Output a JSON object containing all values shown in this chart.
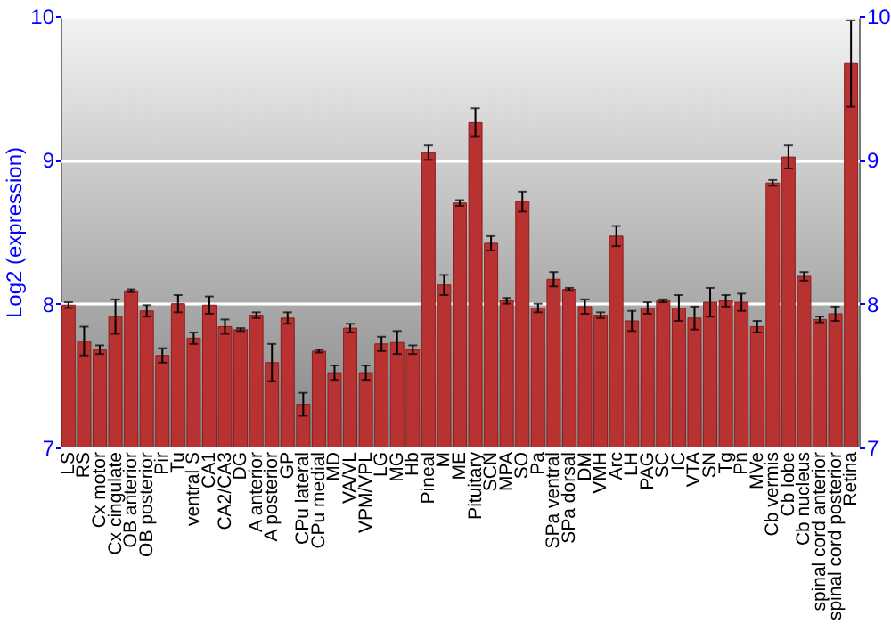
{
  "chart_data": {
    "type": "bar",
    "ylabel": "Log2 (expression)",
    "categories": [
      "LS",
      "RS",
      "Cx motor",
      "Cx cingulate",
      "OB anterior",
      "OB posterior",
      "Pir",
      "Tu",
      "ventral S",
      "CA1",
      "CA2/CA3",
      "DG",
      "A anterior",
      "A posterior",
      "GP",
      "CPu lateral",
      "CPu medial",
      "MD",
      "VA/VL",
      "VPM/VPL",
      "LG",
      "MG",
      "Hb",
      "Pineal",
      "M",
      "ME",
      "Pituitary",
      "SCN",
      "MPA",
      "SO",
      "Pa",
      "SPa ventral",
      "SPa dorsal",
      "DM",
      "VMH",
      "Arc",
      "LH",
      "PAG",
      "SC",
      "IC",
      "VTA",
      "SN",
      "Tg",
      "Pn",
      "MVe",
      "Cb vermis",
      "Cb lobe",
      "Cb nucleus",
      "spinal cord anterior",
      "spinal cord posterior",
      "Retina"
    ],
    "values": [
      7.99,
      7.74,
      7.68,
      7.91,
      8.09,
      7.95,
      7.64,
      8.0,
      7.76,
      7.99,
      7.84,
      7.82,
      7.92,
      7.59,
      7.9,
      7.3,
      7.67,
      7.52,
      7.83,
      7.52,
      7.72,
      7.73,
      7.68,
      9.05,
      8.13,
      8.7,
      9.26,
      8.42,
      8.02,
      8.71,
      7.97,
      8.17,
      8.1,
      7.98,
      7.92,
      8.47,
      7.88,
      7.97,
      8.02,
      7.97,
      7.9,
      8.01,
      8.02,
      8.01,
      7.84,
      8.84,
      9.02,
      8.19,
      7.89,
      7.93,
      9.67
    ],
    "errors": [
      0.02,
      0.1,
      0.03,
      0.12,
      0.01,
      0.04,
      0.05,
      0.06,
      0.04,
      0.06,
      0.05,
      0.01,
      0.02,
      0.13,
      0.04,
      0.08,
      0.01,
      0.05,
      0.03,
      0.05,
      0.05,
      0.08,
      0.03,
      0.05,
      0.07,
      0.02,
      0.1,
      0.05,
      0.02,
      0.07,
      0.03,
      0.05,
      0.01,
      0.05,
      0.02,
      0.07,
      0.07,
      0.04,
      0.01,
      0.09,
      0.08,
      0.1,
      0.04,
      0.06,
      0.04,
      0.02,
      0.08,
      0.03,
      0.02,
      0.05,
      0.3
    ],
    "color": "#b83232",
    "ylim": [
      7,
      10
    ],
    "yticks": [
      7,
      8,
      9,
      10
    ],
    "y2lim": [
      7,
      10
    ],
    "y2ticks": [
      7,
      8,
      9,
      10
    ],
    "grid": "y"
  }
}
